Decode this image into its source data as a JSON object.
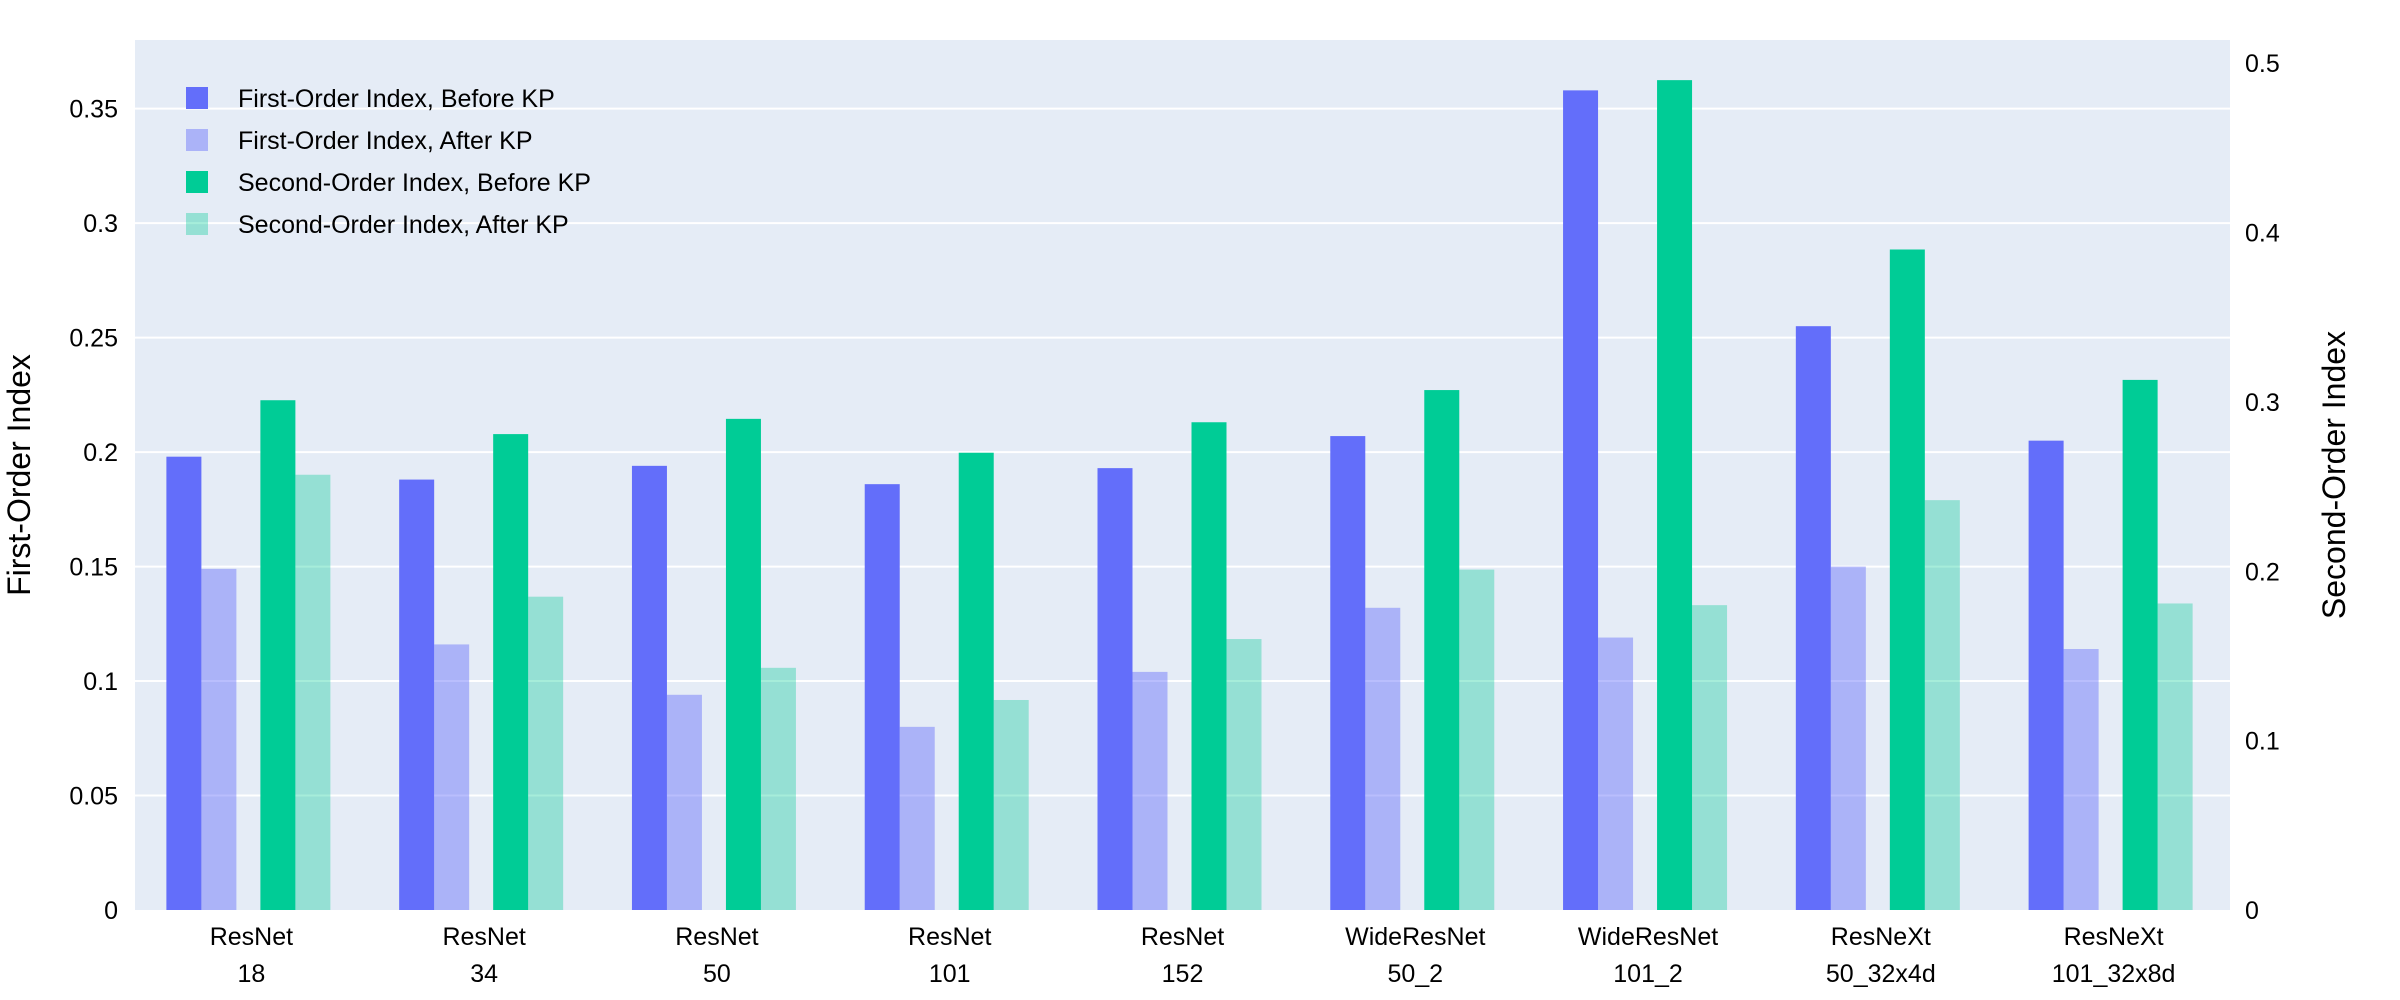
{
  "chart_data": {
    "type": "bar",
    "title": "",
    "categories": [
      [
        "ResNet",
        "18"
      ],
      [
        "ResNet",
        "34"
      ],
      [
        "ResNet",
        "50"
      ],
      [
        "ResNet",
        "101"
      ],
      [
        "ResNet",
        "152"
      ],
      [
        "WideResNet",
        "50_2"
      ],
      [
        "WideResNet",
        "101_2"
      ],
      [
        "ResNeXt",
        "50_32x4d"
      ],
      [
        "ResNeXt",
        "101_32x8d"
      ]
    ],
    "y_left": {
      "label": "First-Order Index",
      "range": [
        0,
        0.38
      ],
      "ticks": [
        0,
        0.05,
        0.1,
        0.15,
        0.2,
        0.25,
        0.3,
        0.35
      ],
      "tick_labels": [
        "0",
        "0.05",
        "0.1",
        "0.15",
        "0.2",
        "0.25",
        "0.3",
        "0.35"
      ]
    },
    "y_right": {
      "label": "Second-Order Index",
      "range": [
        0,
        0.5137
      ],
      "ticks": [
        0,
        0.1,
        0.2,
        0.3,
        0.4,
        0.5
      ],
      "tick_labels": [
        "0",
        "0.1",
        "0.2",
        "0.3",
        "0.4",
        "0.5"
      ]
    },
    "grid": true,
    "legend_position": "top-left",
    "series": [
      {
        "name": "First-Order Index, Before KP",
        "axis": "left",
        "color": "#636efa",
        "opacity": 1,
        "values": [
          0.198,
          0.188,
          0.194,
          0.186,
          0.193,
          0.207,
          0.358,
          0.255,
          0.205
        ]
      },
      {
        "name": "First-Order Index, After KP",
        "axis": "left",
        "color": "#636efa",
        "opacity": 0.45,
        "values": [
          0.149,
          0.116,
          0.094,
          0.08,
          0.104,
          0.132,
          0.119,
          0.15,
          0.114
        ]
      },
      {
        "name": "Second-Order Index, Before KP",
        "axis": "right",
        "color": "#00cc96",
        "opacity": 1,
        "values": [
          0.301,
          0.281,
          0.29,
          0.27,
          0.288,
          0.307,
          0.49,
          0.39,
          0.313
        ]
      },
      {
        "name": "Second-Order Index, After KP",
        "axis": "right",
        "color": "#00cc96",
        "opacity": 0.35,
        "values": [
          0.257,
          0.185,
          0.143,
          0.124,
          0.16,
          0.201,
          0.18,
          0.242,
          0.181
        ]
      }
    ]
  }
}
